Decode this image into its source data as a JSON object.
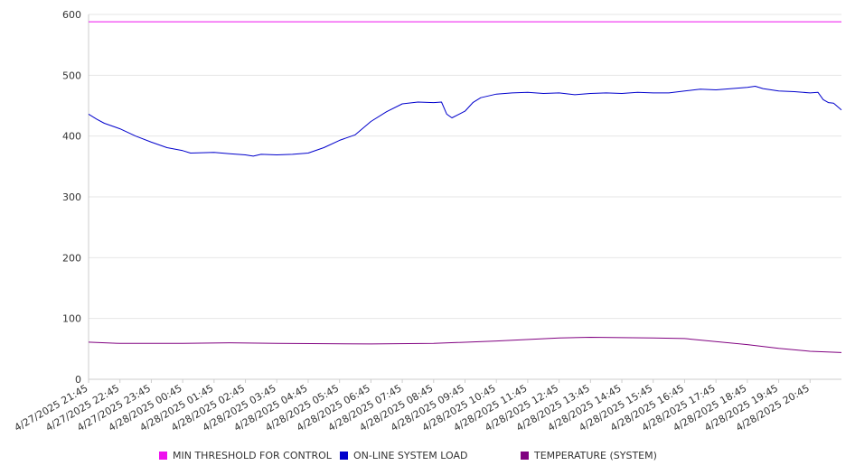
{
  "chart_data": {
    "type": "line",
    "title": "",
    "xlabel": "",
    "ylabel": "",
    "ylim": [
      0,
      600
    ],
    "yticks": [
      0,
      100,
      200,
      300,
      400,
      500,
      600
    ],
    "grid": true,
    "legend_position": "bottom",
    "x_tick_labels": [
      "4/27/2025 21:45",
      "4/27/2025 22:45",
      "4/27/2025 23:45",
      "4/28/2025 00:45",
      "4/28/2025 01:45",
      "4/28/2025 02:45",
      "4/28/2025 03:45",
      "4/28/2025 04:45",
      "4/28/2025 05:45",
      "4/28/2025 06:45",
      "4/28/2025 07:45",
      "4/28/2025 08:45",
      "4/28/2025 09:45",
      "4/28/2025 10:45",
      "4/28/2025 11:45",
      "4/28/2025 12:45",
      "4/28/2025 13:45",
      "4/28/2025 14:45",
      "4/28/2025 15:45",
      "4/28/2025 16:45",
      "4/28/2025 17:45",
      "4/28/2025 18:45",
      "4/28/2025 19:45",
      "4/28/2025 20:45"
    ],
    "x_end": "4/28/2025 21:45",
    "series": [
      {
        "name": "MIN THRESHOLD FOR CONTROL",
        "color": "#ee11ee",
        "points": [
          [
            "4/27/2025 21:45",
            588
          ],
          [
            "4/28/2025 21:45",
            588
          ]
        ]
      },
      {
        "name": "ON-LINE SYSTEM LOAD",
        "color": "#0000cc",
        "points": [
          [
            "4/27/2025 21:45",
            436
          ],
          [
            "4/27/2025 22:00",
            428
          ],
          [
            "4/27/2025 22:15",
            421
          ],
          [
            "4/27/2025 22:45",
            412
          ],
          [
            "4/27/2025 23:15",
            400
          ],
          [
            "4/27/2025 23:45",
            390
          ],
          [
            "4/28/2025 00:15",
            381
          ],
          [
            "4/28/2025 00:45",
            376
          ],
          [
            "4/28/2025 01:00",
            372
          ],
          [
            "4/28/2025 01:45",
            373
          ],
          [
            "4/28/2025 02:15",
            371
          ],
          [
            "4/28/2025 02:45",
            369
          ],
          [
            "4/28/2025 03:00",
            367
          ],
          [
            "4/28/2025 03:15",
            370
          ],
          [
            "4/28/2025 03:45",
            369
          ],
          [
            "4/28/2025 04:15",
            370
          ],
          [
            "4/28/2025 04:45",
            372
          ],
          [
            "4/28/2025 05:15",
            381
          ],
          [
            "4/28/2025 05:45",
            393
          ],
          [
            "4/28/2025 06:15",
            402
          ],
          [
            "4/28/2025 06:45",
            424
          ],
          [
            "4/28/2025 07:15",
            440
          ],
          [
            "4/28/2025 07:45",
            453
          ],
          [
            "4/28/2025 08:15",
            456
          ],
          [
            "4/28/2025 08:45",
            455
          ],
          [
            "4/28/2025 09:00",
            456
          ],
          [
            "4/28/2025 09:10",
            436
          ],
          [
            "4/28/2025 09:20",
            430
          ],
          [
            "4/28/2025 09:45",
            441
          ],
          [
            "4/28/2025 10:00",
            455
          ],
          [
            "4/28/2025 10:15",
            463
          ],
          [
            "4/28/2025 10:45",
            469
          ],
          [
            "4/28/2025 11:15",
            471
          ],
          [
            "4/28/2025 11:45",
            472
          ],
          [
            "4/28/2025 12:15",
            470
          ],
          [
            "4/28/2025 12:45",
            471
          ],
          [
            "4/28/2025 13:15",
            468
          ],
          [
            "4/28/2025 13:45",
            470
          ],
          [
            "4/28/2025 14:15",
            471
          ],
          [
            "4/28/2025 14:45",
            470
          ],
          [
            "4/28/2025 15:15",
            472
          ],
          [
            "4/28/2025 15:45",
            471
          ],
          [
            "4/28/2025 16:15",
            471
          ],
          [
            "4/28/2025 16:45",
            474
          ],
          [
            "4/28/2025 17:15",
            477
          ],
          [
            "4/28/2025 17:45",
            476
          ],
          [
            "4/28/2025 18:15",
            478
          ],
          [
            "4/28/2025 18:45",
            480
          ],
          [
            "4/28/2025 19:00",
            482
          ],
          [
            "4/28/2025 19:15",
            478
          ],
          [
            "4/28/2025 19:45",
            474
          ],
          [
            "4/28/2025 20:15",
            473
          ],
          [
            "4/28/2025 20:45",
            471
          ],
          [
            "4/28/2025 21:00",
            472
          ],
          [
            "4/28/2025 21:10",
            460
          ],
          [
            "4/28/2025 21:20",
            455
          ],
          [
            "4/28/2025 21:30",
            454
          ],
          [
            "4/28/2025 21:45",
            443
          ]
        ]
      },
      {
        "name": "TEMPERATURE (SYSTEM)",
        "color": "#800080",
        "points": [
          [
            "4/27/2025 21:45",
            61
          ],
          [
            "4/27/2025 22:45",
            59
          ],
          [
            "4/28/2025 00:45",
            59
          ],
          [
            "4/28/2025 02:15",
            60
          ],
          [
            "4/28/2025 03:45",
            59
          ],
          [
            "4/28/2025 06:45",
            58
          ],
          [
            "4/28/2025 08:45",
            59
          ],
          [
            "4/28/2025 10:45",
            63
          ],
          [
            "4/28/2025 12:45",
            68
          ],
          [
            "4/28/2025 13:45",
            69
          ],
          [
            "4/28/2025 15:45",
            68
          ],
          [
            "4/28/2025 16:45",
            67
          ],
          [
            "4/28/2025 18:45",
            57
          ],
          [
            "4/28/2025 19:45",
            51
          ],
          [
            "4/28/2025 20:45",
            46
          ],
          [
            "4/28/2025 21:45",
            44
          ]
        ]
      }
    ]
  }
}
